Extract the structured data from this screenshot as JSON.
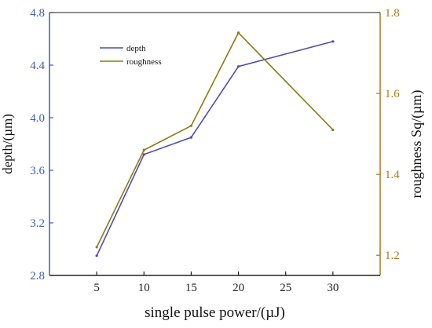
{
  "chart_data": {
    "type": "line",
    "x": [
      5,
      10,
      15,
      20,
      30
    ],
    "xlabel": "single pulse power/(µJ)",
    "xlim": [
      0,
      35
    ],
    "xticks": [
      "5",
      "10",
      "15",
      "20",
      "25",
      "30"
    ],
    "y_left": {
      "label": "depth/(µm)",
      "lim": [
        2.8,
        4.8
      ],
      "ticks": [
        "2.8",
        "3.2",
        "3.6",
        "4.0",
        "4.4",
        "4.8"
      ],
      "color": "#3f5fa8"
    },
    "y_right": {
      "label": "roughness Sq/(µm)",
      "lim": [
        1.15,
        1.8
      ],
      "ticks": [
        "1.2",
        "1.4",
        "1.6",
        "1.8"
      ],
      "color": "#a57c1b"
    },
    "series": [
      {
        "name": "depth",
        "axis": "left",
        "color": "#4a4fb0",
        "values": [
          2.95,
          3.72,
          3.85,
          4.39,
          4.58
        ]
      },
      {
        "name": "roughness",
        "axis": "right",
        "color": "#8d7a14",
        "values": [
          1.22,
          1.46,
          1.52,
          1.75,
          1.51
        ]
      }
    ],
    "legend_position": "top-left",
    "grid": false
  }
}
